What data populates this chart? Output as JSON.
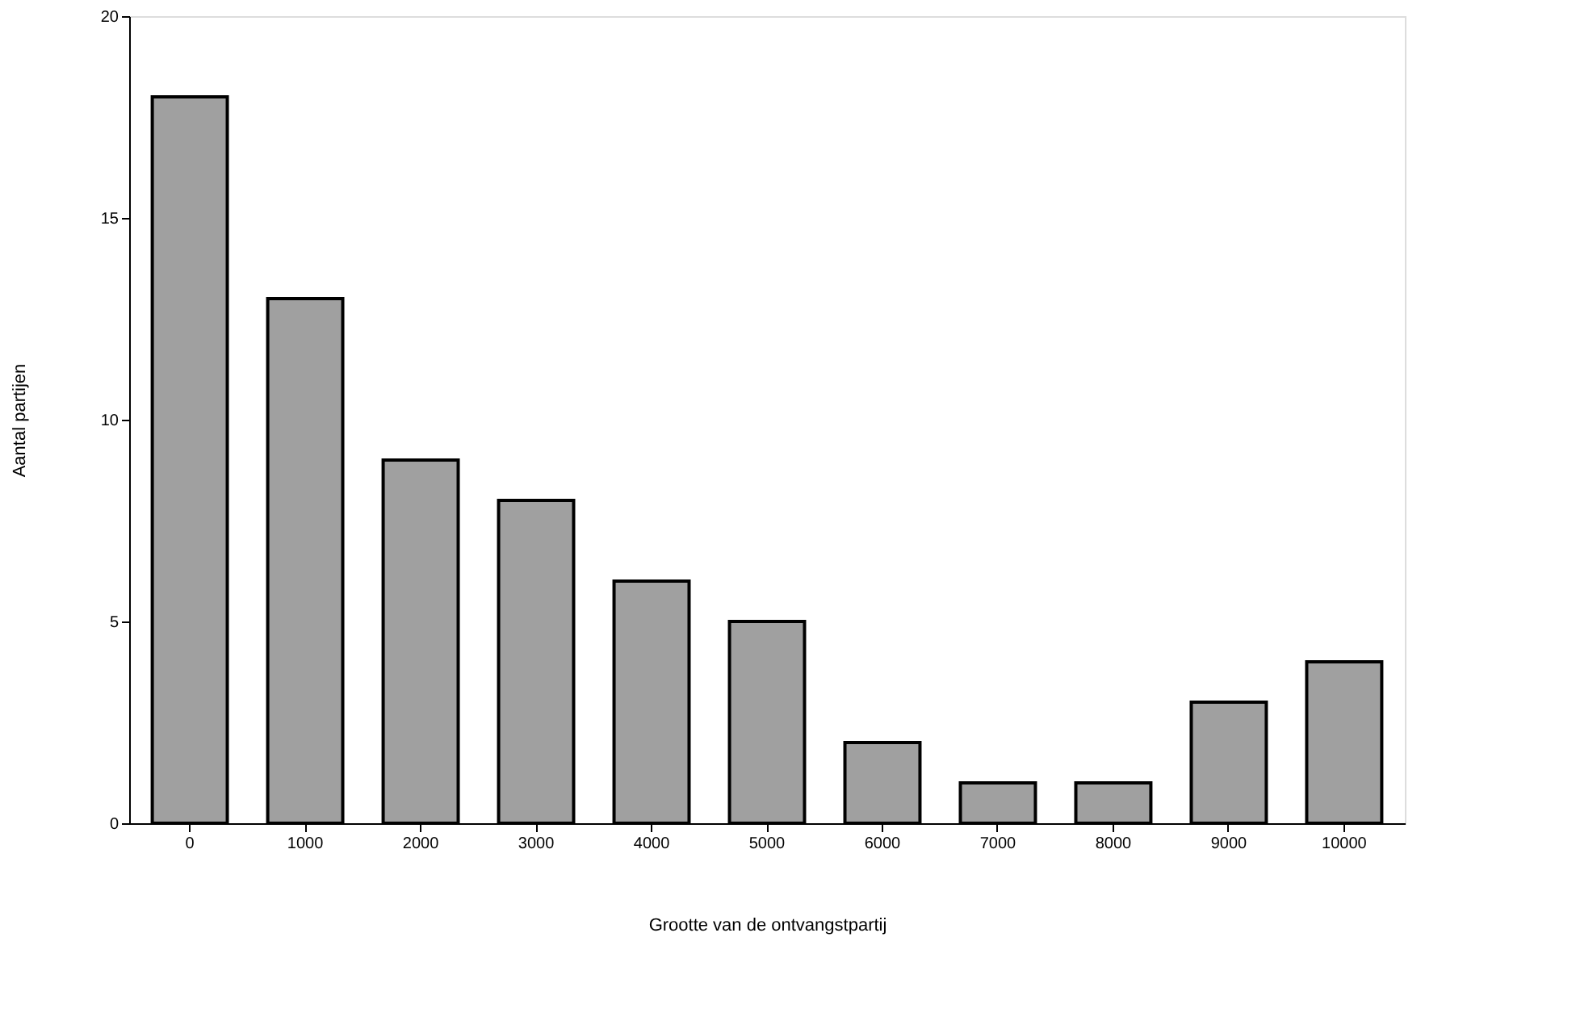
{
  "chart_data": {
    "type": "bar",
    "xlabel": "Grootte van de ontvangstpartij",
    "ylabel": "Aantal partijen",
    "categories": [
      "0",
      "1000",
      "2000",
      "3000",
      "4000",
      "5000",
      "6000",
      "7000",
      "8000",
      "9000",
      "10000"
    ],
    "values": [
      18,
      13,
      9,
      8,
      6,
      5,
      2,
      1,
      1,
      3,
      4
    ],
    "color": "#a0a0a0",
    "ylim": [
      0,
      20
    ],
    "yticks": [
      0,
      5,
      10,
      15,
      20
    ],
    "grid": false
  }
}
